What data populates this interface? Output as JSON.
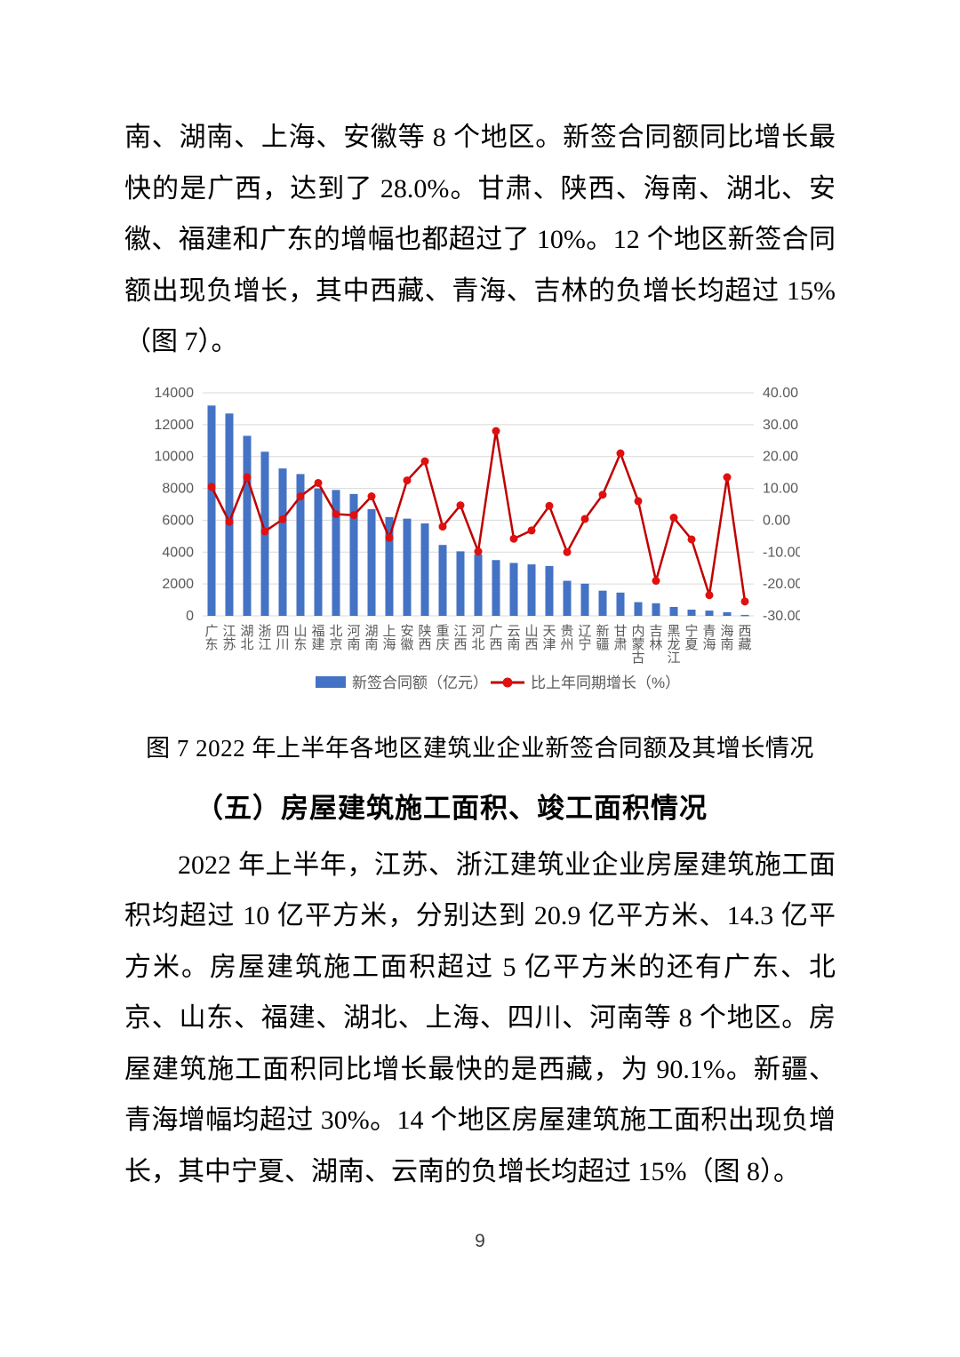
{
  "page_number": "9",
  "body": {
    "paragraph1": "南、湖南、上海、安徽等 8 个地区。新签合同额同比增长最快的是广西，达到了 28.0%。甘肃、陕西、海南、湖北、安徽、福建和广东的增幅也都超过了 10%。12 个地区新签合同额出现负增长，其中西藏、青海、吉林的负增长均超过 15%（图 7）。",
    "figure_caption": "图 7 2022 年上半年各地区建筑业企业新签合同额及其增长情况",
    "section_heading": "（五）房屋建筑施工面积、竣工面积情况",
    "paragraph2": "2022 年上半年，江苏、浙江建筑业企业房屋建筑施工面积均超过 10 亿平方米，分别达到 20.9 亿平方米、14.3 亿平方米。房屋建筑施工面积超过 5 亿平方米的还有广东、北京、山东、福建、湖北、上海、四川、河南等 8 个地区。房屋建筑施工面积同比增长最快的是西藏，为 90.1%。新疆、青海增幅均超过 30%。14 个地区房屋建筑施工面积出现负增长，其中宁夏、湖南、云南的负增长均超过 15%（图 8）。"
  },
  "chart_data": {
    "type": "bar",
    "title": "2022 年上半年各地区建筑业企业新签合同额及其增长情况",
    "categories": [
      "广东",
      "江苏",
      "湖北",
      "浙江",
      "四川",
      "山东",
      "福建",
      "北京",
      "河南",
      "湖南",
      "上海",
      "安徽",
      "陕西",
      "重庆",
      "江西",
      "河北",
      "广西",
      "云南",
      "山西",
      "天津",
      "贵州",
      "辽宁",
      "新疆",
      "甘肃",
      "内蒙古",
      "吉林",
      "黑龙江",
      "宁夏",
      "青海",
      "海南",
      "西藏"
    ],
    "series": [
      {
        "name": "新签合同额（亿元）",
        "type": "bar",
        "axis": "left",
        "values": [
          13200,
          12700,
          11300,
          10300,
          9250,
          8900,
          8000,
          7900,
          7650,
          6700,
          6200,
          6100,
          5800,
          4450,
          4050,
          3850,
          3500,
          3320,
          3230,
          3130,
          2200,
          2020,
          1580,
          1460,
          860,
          790,
          560,
          390,
          330,
          230,
          60
        ]
      },
      {
        "name": "比上年同期增长（%）",
        "type": "line",
        "axis": "right",
        "values": [
          10.5,
          -0.5,
          13.5,
          -3.5,
          0.3,
          7.5,
          11.7,
          1.9,
          1.6,
          7.5,
          -5.5,
          12.5,
          18.5,
          -2.0,
          4.7,
          -9.8,
          28.0,
          -5.8,
          -3.2,
          4.5,
          -10.0,
          0.4,
          8.0,
          21.0,
          6.0,
          -19.0,
          0.8,
          -6.0,
          -23.5,
          13.5,
          -25.5
        ]
      }
    ],
    "left_axis": {
      "min": 0,
      "max": 14000,
      "step": 2000
    },
    "right_axis": {
      "min": -30,
      "max": 40,
      "step": 10,
      "decimals": 2
    },
    "legend_position": "bottom",
    "grid": true,
    "colors": {
      "bar": "#4472c4",
      "line": "#c00000",
      "marker": "#e01010",
      "grid": "#d9d9d9",
      "axis_text": "#595959"
    }
  }
}
